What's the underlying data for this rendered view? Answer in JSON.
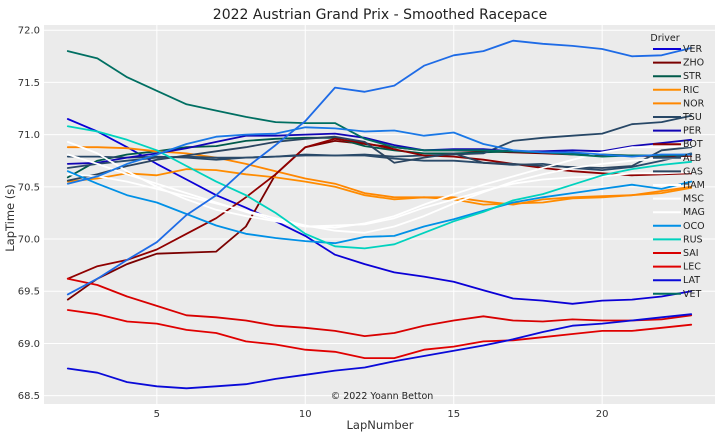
{
  "chart_data": {
    "type": "line",
    "title": "2022 Austrian Grand Prix - Smoothed Racepace",
    "xlabel": "LapNumber",
    "ylabel": "LapTime (s)",
    "xlim": [
      1.2,
      23.8
    ],
    "ylim": [
      68.42,
      72.05
    ],
    "xticks": [
      5,
      10,
      15,
      20
    ],
    "yticks": [
      68.5,
      69.0,
      69.5,
      70.0,
      70.5,
      71.0,
      71.5,
      72.0
    ],
    "ytick_labels": [
      "68.5",
      "69.0",
      "69.5",
      "70.0",
      "70.5",
      "71.0",
      "71.5",
      "72.0"
    ],
    "grid": true,
    "legend_title": "Driver",
    "legend_position": "top-right",
    "annotation": "© 2022 Yoann Betton",
    "series": [
      {
        "name": "VER",
        "color": "#0b00d6",
        "x": [
          2,
          3,
          4,
          5,
          6,
          7,
          8,
          9,
          10,
          11,
          12,
          13,
          14,
          15,
          16,
          17,
          18,
          19,
          20,
          21,
          22,
          23
        ],
        "values": [
          71.15,
          71.03,
          70.88,
          70.72,
          70.57,
          70.42,
          70.3,
          70.17,
          70.03,
          69.85,
          69.76,
          69.68,
          69.64,
          69.59,
          69.51,
          69.43,
          69.41,
          69.38,
          69.41,
          69.42,
          69.45,
          69.5
        ]
      },
      {
        "name": "ZHO",
        "color": "#7a0000",
        "x": [
          2,
          3,
          4,
          5,
          6,
          7,
          8,
          9,
          10,
          11,
          12,
          13,
          14,
          15,
          16,
          17,
          18,
          19,
          20,
          21,
          22,
          23
        ],
        "values": [
          69.42,
          69.62,
          69.76,
          69.86,
          69.87,
          69.88,
          70.12,
          70.62,
          70.88,
          70.94,
          70.91,
          70.88,
          70.85,
          70.85,
          70.84,
          70.83,
          70.82,
          70.81,
          70.8,
          70.8,
          70.79,
          70.79
        ]
      },
      {
        "name": "STR",
        "color": "#005a4a",
        "x": [
          2,
          3,
          4,
          5,
          6,
          7,
          8,
          9,
          10,
          11,
          12,
          13,
          14,
          15,
          16,
          17,
          18,
          19,
          20,
          21,
          22,
          23
        ],
        "values": [
          70.59,
          70.75,
          70.81,
          70.84,
          70.88,
          70.89,
          70.94,
          70.96,
          70.97,
          70.97,
          70.89,
          70.85,
          70.82,
          70.82,
          70.83,
          70.84,
          70.83,
          70.82,
          70.81,
          70.8,
          70.8,
          70.81
        ]
      },
      {
        "name": "RIC",
        "color": "#ff8c00",
        "x": [
          2,
          3,
          4,
          5,
          6,
          7,
          8,
          9,
          10,
          11,
          12,
          13,
          14,
          15,
          16,
          17,
          18,
          19,
          20,
          21,
          22,
          23
        ],
        "values": [
          70.55,
          70.58,
          70.63,
          70.61,
          70.67,
          70.66,
          70.62,
          70.59,
          70.55,
          70.5,
          70.42,
          70.38,
          70.4,
          70.38,
          70.33,
          70.34,
          70.35,
          70.39,
          70.4,
          70.42,
          70.44,
          70.49
        ]
      },
      {
        "name": "NOR",
        "color": "#ff8700",
        "x": [
          2,
          3,
          4,
          5,
          6,
          7,
          8,
          9,
          10,
          11,
          12,
          13,
          14,
          15,
          16,
          17,
          18,
          19,
          20,
          21,
          22,
          23
        ],
        "values": [
          70.88,
          70.88,
          70.87,
          70.84,
          70.82,
          70.78,
          70.72,
          70.65,
          70.58,
          70.53,
          70.44,
          70.4,
          70.4,
          70.4,
          70.36,
          70.33,
          70.38,
          70.4,
          70.41,
          70.42,
          70.46,
          70.5
        ]
      },
      {
        "name": "TSU",
        "color": "#274766",
        "x": [
          2,
          3,
          4,
          5,
          6,
          7,
          8,
          9,
          10,
          11,
          12,
          13,
          14,
          15,
          16,
          17,
          18,
          19,
          20,
          21,
          22,
          23
        ],
        "values": [
          70.79,
          70.79,
          70.78,
          70.79,
          70.78,
          70.76,
          70.78,
          70.79,
          70.81,
          70.8,
          70.81,
          70.79,
          70.8,
          70.81,
          70.82,
          70.94,
          70.97,
          70.99,
          71.01,
          71.1,
          71.12,
          71.18
        ]
      },
      {
        "name": "PER",
        "color": "#1205b5",
        "x": [
          2,
          3,
          4,
          5,
          6,
          7,
          8,
          9,
          10,
          11,
          12,
          13,
          14,
          15,
          16,
          17,
          18,
          19,
          20,
          21,
          22,
          23
        ],
        "values": [
          70.72,
          70.73,
          70.78,
          70.82,
          70.87,
          70.93,
          70.99,
          70.99,
          71.0,
          71.01,
          70.97,
          70.9,
          70.85,
          70.86,
          70.86,
          70.84,
          70.84,
          70.85,
          70.84,
          70.89,
          70.92,
          70.95
        ]
      },
      {
        "name": "BOT",
        "color": "#900000",
        "x": [
          2,
          3,
          4,
          5,
          6,
          7,
          8,
          9,
          10,
          11,
          12,
          13,
          14,
          15,
          16,
          17,
          18,
          19,
          20,
          21,
          22,
          23
        ],
        "values": [
          69.62,
          69.74,
          69.8,
          69.9,
          70.05,
          70.2,
          70.4,
          70.62,
          70.88,
          70.96,
          70.92,
          70.86,
          70.8,
          70.79,
          70.76,
          70.72,
          70.68,
          70.65,
          70.63,
          70.61,
          70.62,
          70.63
        ]
      },
      {
        "name": "ALB",
        "color": "#2a4a6a",
        "x": [
          2,
          3,
          4,
          5,
          6,
          7,
          8,
          9,
          10,
          11,
          12,
          13,
          14,
          15,
          16,
          17,
          18,
          19,
          20,
          21,
          22,
          23
        ],
        "values": [
          70.68,
          70.72,
          70.75,
          70.78,
          70.79,
          70.78,
          70.78,
          70.79,
          70.8,
          70.8,
          70.8,
          70.77,
          70.75,
          70.75,
          70.73,
          70.71,
          70.72,
          70.68,
          70.66,
          70.69,
          70.75,
          70.82
        ]
      },
      {
        "name": "GAS",
        "color": "#2b4560",
        "x": [
          2,
          3,
          4,
          5,
          6,
          7,
          8,
          9,
          10,
          11,
          12,
          13,
          14,
          15,
          16,
          17,
          18,
          19,
          20,
          21,
          22,
          23
        ],
        "values": [
          70.56,
          70.62,
          70.7,
          70.76,
          70.8,
          70.84,
          70.88,
          70.93,
          70.96,
          70.98,
          70.93,
          70.73,
          70.78,
          70.82,
          70.73,
          70.72,
          70.7,
          70.69,
          70.68,
          70.7,
          70.85,
          70.88
        ]
      },
      {
        "name": "HAM",
        "color": "#ffffff",
        "x": [
          2,
          3,
          4,
          5,
          6,
          7,
          8,
          9,
          10,
          11,
          12,
          13,
          14,
          15,
          16,
          17,
          18,
          19,
          20,
          21,
          22,
          23
        ],
        "values": [
          70.93,
          70.82,
          70.65,
          70.5,
          70.38,
          70.28,
          70.22,
          70.17,
          70.12,
          70.13,
          70.14,
          70.2,
          70.3,
          70.38,
          70.46,
          70.53,
          70.57,
          70.59,
          70.6,
          70.63,
          70.63,
          70.64
        ]
      },
      {
        "name": "MSC",
        "color": "#ffffff",
        "x": [
          2,
          3,
          4,
          5,
          6,
          7,
          8,
          9,
          10,
          11,
          12,
          13,
          14,
          15,
          16,
          17,
          18,
          19,
          20,
          21,
          22,
          23
        ],
        "values": [
          70.81,
          70.72,
          70.62,
          70.53,
          70.44,
          70.35,
          70.26,
          70.18,
          70.12,
          70.11,
          70.15,
          70.22,
          70.33,
          70.43,
          70.52,
          70.6,
          70.68,
          70.76,
          70.83,
          70.88,
          70.88,
          70.89
        ]
      },
      {
        "name": "MAG",
        "color": "#ffffff",
        "x": [
          2,
          3,
          4,
          5,
          6,
          7,
          8,
          9,
          10,
          11,
          12,
          13,
          14,
          15,
          16,
          17,
          18,
          19,
          20,
          21,
          22,
          23
        ],
        "values": [
          70.62,
          70.6,
          70.55,
          70.48,
          70.41,
          70.34,
          70.27,
          70.2,
          70.13,
          70.08,
          70.06,
          70.12,
          70.22,
          70.34,
          70.45,
          70.55,
          70.62,
          70.68,
          70.72,
          70.75,
          70.77,
          70.78
        ]
      },
      {
        "name": "OCO",
        "color": "#0090e6",
        "x": [
          2,
          3,
          4,
          5,
          6,
          7,
          8,
          9,
          10,
          11,
          12,
          13,
          14,
          15,
          16,
          17,
          18,
          19,
          20,
          21,
          22,
          23
        ],
        "values": [
          70.65,
          70.53,
          70.42,
          70.35,
          70.24,
          70.13,
          70.05,
          70.01,
          69.98,
          69.96,
          70.02,
          70.03,
          70.12,
          70.19,
          70.27,
          70.35,
          70.4,
          70.44,
          70.48,
          70.52,
          70.48,
          70.55
        ]
      },
      {
        "name": "RUS",
        "color": "#00d2be",
        "x": [
          2,
          3,
          4,
          5,
          6,
          7,
          8,
          9,
          10,
          11,
          12,
          13,
          14,
          15,
          16,
          17,
          18,
          19,
          20,
          21,
          22,
          23
        ],
        "values": [
          71.08,
          71.03,
          70.95,
          70.85,
          70.7,
          70.55,
          70.42,
          70.25,
          70.05,
          69.93,
          69.91,
          69.95,
          70.06,
          70.17,
          70.26,
          70.37,
          70.43,
          70.52,
          70.61,
          70.67,
          70.71,
          70.74
        ]
      },
      {
        "name": "SAI",
        "color": "#d80000",
        "x": [
          2,
          3,
          4,
          5,
          6,
          7,
          8,
          9,
          10,
          11,
          12,
          13,
          14,
          15,
          16,
          17,
          18,
          19,
          20,
          21,
          22,
          23
        ],
        "values": [
          69.62,
          69.56,
          69.45,
          69.36,
          69.27,
          69.25,
          69.22,
          69.17,
          69.15,
          69.12,
          69.07,
          69.1,
          69.17,
          69.22,
          69.26,
          69.22,
          69.21,
          69.23,
          69.22,
          69.22,
          69.23,
          69.27
        ]
      },
      {
        "name": "LEC",
        "color": "#e00000",
        "x": [
          2,
          3,
          4,
          5,
          6,
          7,
          8,
          9,
          10,
          11,
          12,
          13,
          14,
          15,
          16,
          17,
          18,
          19,
          20,
          21,
          22,
          23
        ],
        "values": [
          69.32,
          69.28,
          69.21,
          69.19,
          69.13,
          69.1,
          69.02,
          68.99,
          68.94,
          68.92,
          68.86,
          68.86,
          68.94,
          68.97,
          69.02,
          69.03,
          69.06,
          69.09,
          69.12,
          69.12,
          69.15,
          69.18
        ]
      },
      {
        "name": "LAT",
        "color": "#0a0ad8",
        "x": [
          2,
          3,
          4,
          5,
          6,
          7,
          8,
          9,
          10,
          11,
          12,
          13,
          14,
          15,
          16,
          17,
          18,
          19,
          20,
          21,
          22,
          23
        ],
        "values": [
          68.76,
          68.72,
          68.63,
          68.59,
          68.57,
          68.59,
          68.61,
          68.66,
          68.7,
          68.74,
          68.77,
          68.83,
          68.88,
          68.93,
          68.98,
          69.04,
          69.11,
          69.17,
          69.19,
          69.22,
          69.25,
          69.28
        ]
      },
      {
        "name": "VET",
        "color": "#006f62",
        "x": [
          2,
          3,
          4,
          5,
          6,
          7,
          8,
          9,
          10,
          11,
          12,
          13,
          14,
          15,
          16,
          17,
          18,
          19,
          20,
          21,
          22,
          23
        ],
        "values": [
          71.8,
          71.73,
          71.55,
          71.42,
          71.29,
          71.23,
          71.17,
          71.12,
          71.11,
          71.11,
          70.96,
          70.88,
          70.85,
          70.85,
          70.85,
          70.84,
          70.83,
          70.81,
          70.79,
          70.8,
          70.8,
          70.81
        ]
      },
      {
        "name": "",
        "color": "#1e6be6",
        "x": [
          2,
          3,
          4,
          5,
          6,
          7,
          8,
          9,
          10,
          11,
          12,
          13,
          14,
          15,
          16,
          17,
          18,
          19,
          20,
          21,
          22,
          23
        ],
        "values": [
          69.47,
          69.62,
          69.8,
          69.97,
          70.23,
          70.42,
          70.68,
          70.9,
          71.13,
          71.45,
          71.41,
          71.47,
          71.66,
          71.76,
          71.8,
          71.9,
          71.87,
          71.85,
          71.82,
          71.75,
          71.76,
          71.83
        ]
      },
      {
        "name": "",
        "color": "#1a78e6",
        "x": [
          2,
          3,
          4,
          5,
          6,
          7,
          8,
          9,
          10,
          11,
          12,
          13,
          14,
          15,
          16,
          17,
          18,
          19,
          20,
          21,
          22,
          23
        ],
        "values": [
          70.53,
          70.6,
          70.72,
          70.81,
          70.91,
          70.98,
          71.0,
          71.01,
          71.07,
          71.06,
          71.03,
          71.04,
          70.99,
          71.02,
          70.91,
          70.85,
          70.83,
          70.83,
          70.81,
          70.79,
          70.81,
          70.81
        ]
      }
    ]
  }
}
